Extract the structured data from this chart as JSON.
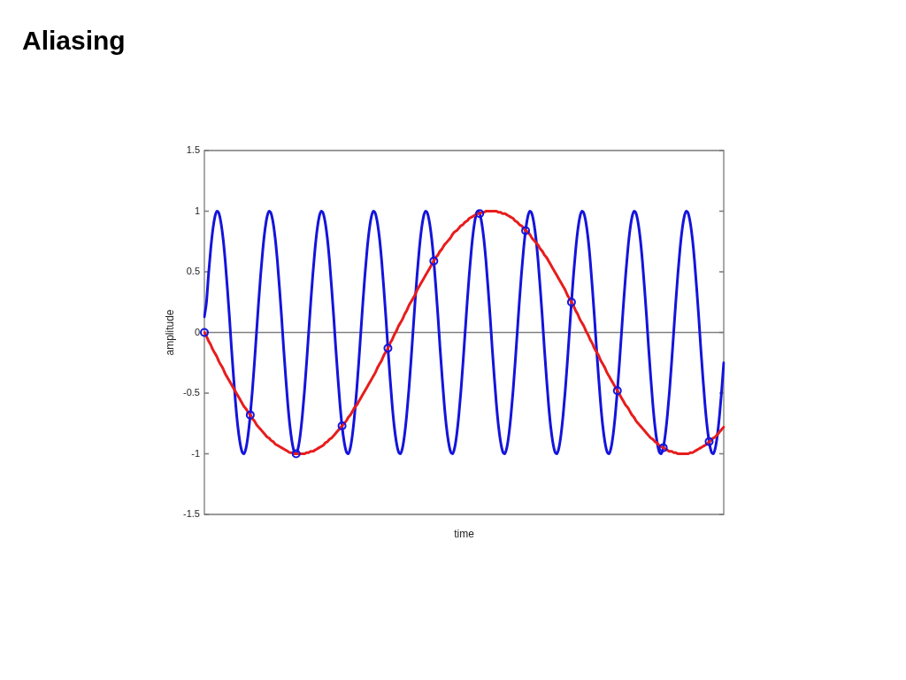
{
  "chart_data": {
    "type": "line",
    "title": "Aliasing",
    "xlabel": "time",
    "ylabel": "amplitude",
    "categories": [
      null,
      null,
      null,
      null,
      null,
      null,
      null,
      null,
      null,
      null,
      null,
      null,
      null,
      null,
      null,
      null,
      null,
      null,
      null,
      null,
      null,
      null,
      null,
      null,
      null,
      null,
      null,
      null,
      null,
      null,
      null,
      null,
      null,
      null,
      null,
      null,
      null,
      null,
      null,
      null,
      null,
      null,
      null,
      null,
      null,
      null,
      null,
      null,
      null,
      null,
      null,
      null,
      null,
      null,
      null,
      null,
      null,
      null,
      null,
      null,
      null,
      null,
      null,
      null,
      null,
      null,
      null,
      null,
      null,
      null,
      null,
      null,
      null,
      null,
      null,
      null,
      null,
      null,
      null,
      null,
      null,
      null,
      null,
      null,
      null,
      null,
      null,
      null,
      null,
      null,
      null,
      null,
      null,
      null,
      null,
      null,
      null,
      null,
      null,
      null,
      null,
      null,
      null,
      null,
      null,
      null,
      null,
      null,
      null,
      null,
      null,
      null,
      null,
      null,
      null,
      null,
      null,
      null,
      null,
      null,
      null,
      null,
      null,
      null,
      null,
      null,
      null,
      null,
      null,
      null,
      null,
      null,
      null,
      null,
      null,
      null,
      null,
      null,
      null,
      null,
      null,
      null,
      null,
      null,
      null,
      null,
      null,
      null,
      null,
      null,
      null,
      null,
      null,
      null,
      null,
      null,
      null,
      null,
      null,
      null,
      null,
      null,
      null,
      null,
      null,
      null,
      null,
      null,
      null,
      null,
      null,
      null,
      null,
      null,
      null,
      null,
      null,
      null,
      null,
      null,
      null,
      null,
      null,
      null,
      null,
      null,
      null,
      null,
      null,
      null,
      null,
      null,
      null,
      null,
      null,
      null,
      null,
      null,
      null,
      null,
      null,
      null,
      null,
      null,
      null,
      null,
      null,
      null,
      null,
      null,
      null,
      null,
      null,
      null,
      null,
      null,
      null,
      null,
      null,
      null,
      null,
      null,
      null,
      null,
      null,
      null,
      null,
      null,
      null,
      null,
      null,
      null,
      null,
      null,
      null,
      null,
      null,
      null,
      null,
      null,
      null,
      null,
      null,
      null,
      null,
      null,
      null,
      null,
      null,
      null
    ],
    "series": [
      {
        "color": "#1414dc",
        "values": [
          0.13,
          0.25,
          0.48,
          0.68,
          0.84,
          0.95,
          1,
          0.98,
          0.9,
          0.77,
          0.59,
          0.37,
          0.13,
          -0.13,
          -0.37,
          -0.59,
          -0.77,
          -0.9,
          -0.98,
          -1,
          -0.95,
          -0.84,
          -0.68,
          -0.48,
          -0.25,
          0,
          0.25,
          0.48,
          0.68,
          0.84,
          0.95,
          1,
          0.98,
          0.9,
          0.77,
          0.59,
          0.37,
          0.13,
          -0.13,
          -0.37,
          -0.59,
          -0.77,
          -0.9,
          -0.98,
          -1,
          -0.95,
          -0.84,
          -0.68,
          -0.48,
          -0.25,
          0,
          0.25,
          0.48,
          0.68,
          0.84,
          0.95,
          1,
          0.98,
          0.9,
          0.77,
          0.59,
          0.37,
          0.13,
          -0.13,
          -0.37,
          -0.59,
          -0.77,
          -0.9,
          -0.98,
          -1,
          -0.95,
          -0.84,
          -0.68,
          -0.48,
          -0.25,
          0,
          0.25,
          0.48,
          0.68,
          0.84,
          0.95,
          1,
          0.98,
          0.9,
          0.77,
          0.59,
          0.37,
          0.13,
          -0.13,
          -0.37,
          -0.59,
          -0.77,
          -0.9,
          -0.98,
          -1,
          -0.95,
          -0.84,
          -0.68,
          -0.48,
          -0.25,
          0,
          0.25,
          0.48,
          0.68,
          0.84,
          0.95,
          1,
          0.98,
          0.9,
          0.77,
          0.59,
          0.37,
          0.13,
          -0.13,
          -0.37,
          -0.59,
          -0.77,
          -0.9,
          -0.98,
          -1,
          -0.95,
          -0.84,
          -0.68,
          -0.48,
          -0.25,
          0,
          0.25,
          0.48,
          0.68,
          0.84,
          0.95,
          1,
          0.98,
          0.9,
          0.77,
          0.59,
          0.37,
          0.13,
          -0.13,
          -0.37,
          -0.59,
          -0.77,
          -0.9,
          -0.98,
          -1,
          -0.95,
          -0.84,
          -0.68,
          -0.48,
          -0.25,
          0,
          0.25,
          0.48,
          0.68,
          0.84,
          0.95,
          1,
          0.98,
          0.9,
          0.77,
          0.59,
          0.37,
          0.13,
          -0.13,
          -0.37,
          -0.59,
          -0.77,
          -0.9,
          -0.98,
          -1,
          -0.95,
          -0.84,
          -0.68,
          -0.48,
          -0.25,
          0,
          0.25,
          0.48,
          0.68,
          0.84,
          0.95,
          1,
          0.98,
          0.9,
          0.77,
          0.59,
          0.37,
          0.13,
          -0.13,
          -0.37,
          -0.59,
          -0.77,
          -0.9,
          -0.98,
          -1,
          -0.95,
          -0.84,
          -0.68,
          -0.48,
          -0.25,
          0,
          0.25,
          0.48,
          0.68,
          0.84,
          0.95,
          1,
          0.98,
          0.9,
          0.77,
          0.59,
          0.37,
          0.13,
          -0.13,
          -0.37,
          -0.59,
          -0.77,
          -0.9,
          -0.98,
          -1,
          -0.95,
          -0.84,
          -0.68,
          -0.48,
          -0.25,
          0,
          0.25,
          0.48,
          0.68,
          0.84,
          0.95,
          1,
          0.98,
          0.9,
          0.77,
          0.59,
          0.37,
          0.13,
          -0.13,
          -0.37,
          -0.59,
          -0.77,
          -0.9,
          -0.98,
          -1,
          -0.95,
          -0.84,
          -0.68,
          -0.48,
          -0.25
        ]
      },
      {
        "color": "#e81c1c",
        "values": [
          0,
          -0.03,
          -0.07,
          -0.1,
          -0.14,
          -0.17,
          -0.2,
          -0.24,
          -0.27,
          -0.3,
          -0.34,
          -0.37,
          -0.4,
          -0.43,
          -0.46,
          -0.49,
          -0.52,
          -0.55,
          -0.58,
          -0.61,
          -0.63,
          -0.66,
          -0.68,
          -0.71,
          -0.73,
          -0.76,
          -0.78,
          -0.8,
          -0.82,
          -0.84,
          -0.86,
          -0.87,
          -0.89,
          -0.9,
          -0.92,
          -0.93,
          -0.94,
          -0.95,
          -0.96,
          -0.97,
          -0.98,
          -0.99,
          -0.99,
          -1,
          -1,
          -1,
          -1,
          -1,
          -1,
          -0.99,
          -0.99,
          -0.98,
          -0.98,
          -0.97,
          -0.96,
          -0.95,
          -0.94,
          -0.93,
          -0.91,
          -0.9,
          -0.88,
          -0.87,
          -0.85,
          -0.83,
          -0.81,
          -0.79,
          -0.77,
          -0.75,
          -0.73,
          -0.7,
          -0.68,
          -0.65,
          -0.62,
          -0.6,
          -0.57,
          -0.54,
          -0.51,
          -0.48,
          -0.45,
          -0.42,
          -0.39,
          -0.36,
          -0.33,
          -0.29,
          -0.26,
          -0.23,
          -0.19,
          -0.16,
          -0.13,
          -0.09,
          -0.06,
          -0.02,
          0.01,
          0.05,
          0.08,
          0.11,
          0.15,
          0.18,
          0.22,
          0.25,
          0.28,
          0.31,
          0.35,
          0.38,
          0.41,
          0.44,
          0.47,
          0.5,
          0.53,
          0.56,
          0.59,
          0.62,
          0.64,
          0.67,
          0.69,
          0.72,
          0.74,
          0.76,
          0.78,
          0.81,
          0.83,
          0.84,
          0.86,
          0.88,
          0.89,
          0.91,
          0.92,
          0.94,
          0.95,
          0.96,
          0.97,
          0.98,
          0.98,
          0.99,
          0.99,
          1,
          1,
          1,
          1,
          1,
          1,
          0.99,
          0.99,
          0.98,
          0.98,
          0.97,
          0.96,
          0.95,
          0.94,
          0.92,
          0.91,
          0.89,
          0.88,
          0.86,
          0.84,
          0.83,
          0.81,
          0.78,
          0.76,
          0.74,
          0.72,
          0.69,
          0.67,
          0.64,
          0.62,
          0.59,
          0.56,
          0.53,
          0.5,
          0.47,
          0.44,
          0.41,
          0.38,
          0.35,
          0.31,
          0.28,
          0.25,
          0.22,
          0.18,
          0.15,
          0.11,
          0.08,
          0.05,
          0.01,
          -0.02,
          -0.06,
          -0.09,
          -0.13,
          -0.16,
          -0.19,
          -0.23,
          -0.26,
          -0.29,
          -0.33,
          -0.36,
          -0.39,
          -0.42,
          -0.45,
          -0.48,
          -0.51,
          -0.54,
          -0.57,
          -0.6,
          -0.62,
          -0.65,
          -0.68,
          -0.7,
          -0.73,
          -0.75,
          -0.77,
          -0.79,
          -0.81,
          -0.83,
          -0.85,
          -0.87,
          -0.88,
          -0.9,
          -0.91,
          -0.93,
          -0.94,
          -0.95,
          -0.96,
          -0.97,
          -0.98,
          -0.98,
          -0.99,
          -0.99,
          -1,
          -1,
          -1,
          -1,
          -1,
          -1,
          -0.99,
          -0.99,
          -0.98,
          -0.97,
          -0.96,
          -0.95,
          -0.94,
          -0.93,
          -0.92,
          -0.9,
          -0.89,
          -0.87,
          -0.86,
          -0.84,
          -0.82,
          -0.8,
          -0.78
        ]
      },
      {
        "type": "scatter",
        "color": "#1414dc",
        "marker": "circle",
        "values": [
          0,
          null,
          null,
          null,
          null,
          null,
          null,
          null,
          null,
          null,
          null,
          null,
          null,
          null,
          null,
          null,
          null,
          null,
          null,
          null,
          null,
          null,
          -0.68,
          null,
          null,
          null,
          null,
          null,
          null,
          null,
          null,
          null,
          null,
          null,
          null,
          null,
          null,
          null,
          null,
          null,
          null,
          null,
          null,
          null,
          -1,
          null,
          null,
          null,
          null,
          null,
          null,
          null,
          null,
          null,
          null,
          null,
          null,
          null,
          null,
          null,
          null,
          null,
          null,
          null,
          null,
          null,
          -0.77,
          null,
          null,
          null,
          null,
          null,
          null,
          null,
          null,
          null,
          null,
          null,
          null,
          null,
          null,
          null,
          null,
          null,
          null,
          null,
          null,
          null,
          -0.13,
          null,
          null,
          null,
          null,
          null,
          null,
          null,
          null,
          null,
          null,
          null,
          null,
          null,
          null,
          null,
          null,
          null,
          null,
          null,
          null,
          null,
          0.59,
          null,
          null,
          null,
          null,
          null,
          null,
          null,
          null,
          null,
          null,
          null,
          null,
          null,
          null,
          null,
          null,
          null,
          null,
          null,
          null,
          null,
          0.98,
          null,
          null,
          null,
          null,
          null,
          null,
          null,
          null,
          null,
          null,
          null,
          null,
          null,
          null,
          null,
          null,
          null,
          null,
          null,
          null,
          null,
          0.84,
          null,
          null,
          null,
          null,
          null,
          null,
          null,
          null,
          null,
          null,
          null,
          null,
          null,
          null,
          null,
          null,
          null,
          null,
          null,
          null,
          null,
          0.25,
          null,
          null,
          null,
          null,
          null,
          null,
          null,
          null,
          null,
          null,
          null,
          null,
          null,
          null,
          null,
          null,
          null,
          null,
          null,
          null,
          null,
          -0.48,
          null,
          null,
          null,
          null,
          null,
          null,
          null,
          null,
          null,
          null,
          null,
          null,
          null,
          null,
          null,
          null,
          null,
          null,
          null,
          null,
          null,
          -0.95,
          null,
          null,
          null,
          null,
          null,
          null,
          null,
          null,
          null,
          null,
          null,
          null,
          null,
          null,
          null,
          null,
          null,
          null,
          null,
          null,
          null,
          -0.9,
          null,
          null,
          null,
          null,
          null,
          null,
          null
        ]
      }
    ],
    "ylim": [
      -1.5,
      1.5
    ],
    "yticks": [
      -1.5,
      -1,
      -0.5,
      0,
      0.5,
      1,
      1.5
    ],
    "tick_labels": "y",
    "ref_lines": [
      {
        "axis": "y",
        "value": 0,
        "color": "#808080"
      }
    ],
    "legend": false,
    "grid": false
  }
}
